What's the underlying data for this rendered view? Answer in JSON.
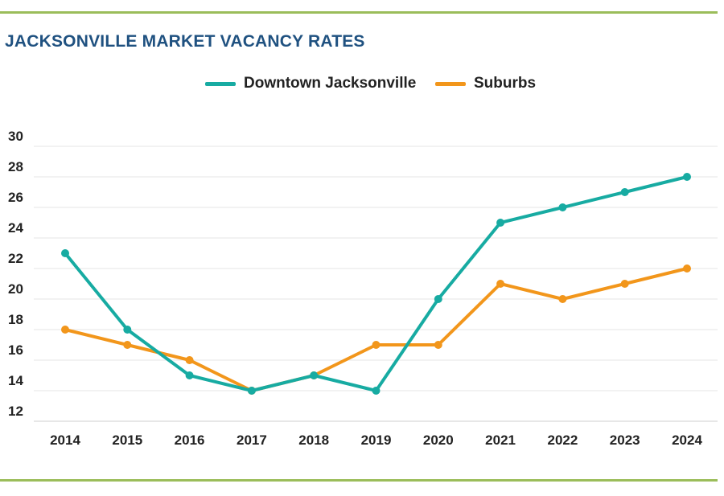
{
  "chart_data": {
    "type": "line",
    "title": "JACKSONVILLE MARKET VACANCY RATES",
    "xlabel": "",
    "ylabel": "",
    "x": [
      "2014",
      "2015",
      "2016",
      "2017",
      "2018",
      "2019",
      "2020",
      "2021",
      "2022",
      "2023",
      "2024"
    ],
    "series": [
      {
        "name": "Downtown Jacksonville",
        "color": "#17aba2",
        "values": [
          23,
          18,
          15,
          14,
          15,
          14,
          20,
          25,
          26,
          27,
          28
        ]
      },
      {
        "name": "Suburbs",
        "color": "#f2961b",
        "values": [
          18,
          17,
          16,
          14,
          15,
          17,
          17,
          21,
          20,
          21,
          22
        ]
      }
    ],
    "yticks": [
      12,
      14,
      16,
      18,
      20,
      22,
      24,
      26,
      28,
      30
    ],
    "ylim": [
      12,
      30
    ],
    "grid": true,
    "legend_position": "top-center",
    "accent_color": "#9bbd5a",
    "title_color": "#1f5180"
  }
}
